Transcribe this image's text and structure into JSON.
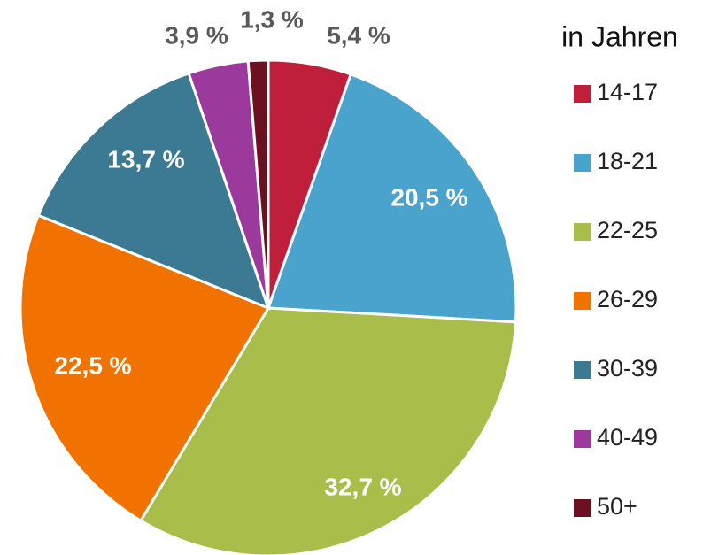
{
  "chart_data": {
    "type": "pie",
    "legend_title": "in Jahren",
    "categories": [
      "14-17",
      "18-21",
      "22-25",
      "26-29",
      "30-39",
      "40-49",
      "50+"
    ],
    "values": [
      5.4,
      20.5,
      32.7,
      22.5,
      13.7,
      3.9,
      1.3
    ],
    "value_labels": [
      "5,4 %",
      "20,5 %",
      "32,7 %",
      "22,5 %",
      "13,7 %",
      "3,9 %",
      "1,3 %"
    ],
    "colors": [
      "#c01f3c",
      "#4aa3cc",
      "#a9bd4b",
      "#f27200",
      "#3b7a92",
      "#9b3a9c",
      "#6b1121"
    ],
    "legend": "right"
  }
}
